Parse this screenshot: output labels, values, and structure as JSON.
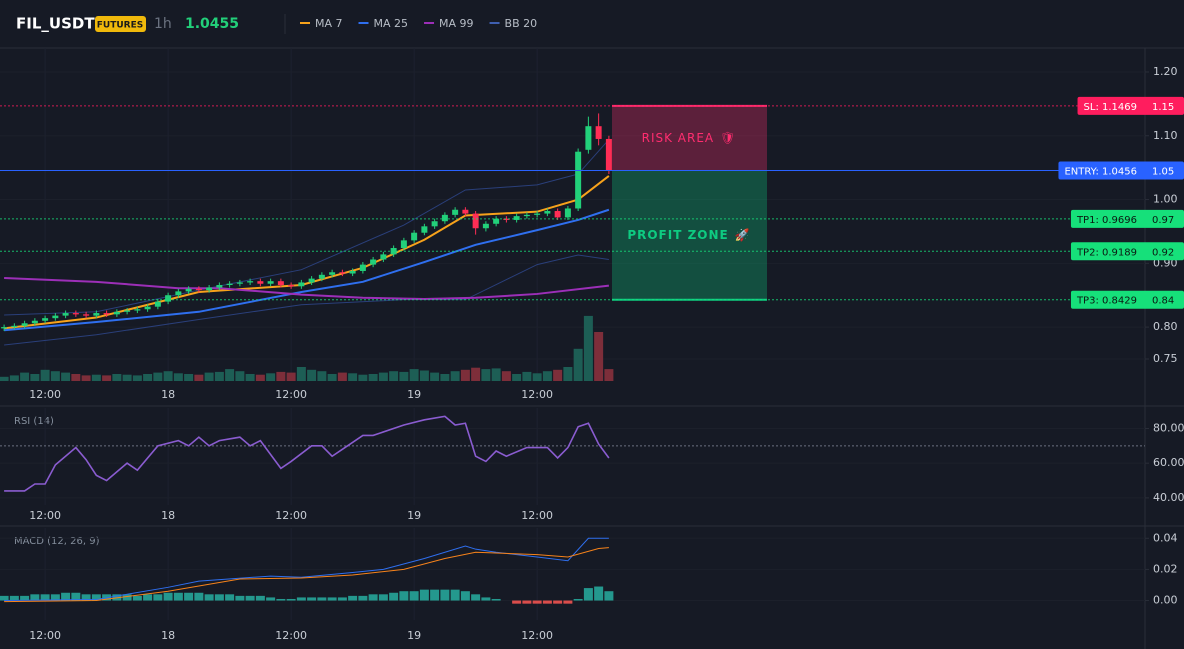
{
  "chart_data": [
    {
      "type": "candlestick",
      "title": "FIL_USDT",
      "badge": "FUTURES",
      "interval": "1h",
      "last_price": 1.0455,
      "up_color": "#22d07a",
      "down_color": "#ff2d55",
      "volume_up_color": "#1d5e55",
      "volume_down_color": "#7d2e3a",
      "xlim": [
        -0.4,
        111.3
      ],
      "ylim": [
        0.7155,
        1.2376
      ],
      "grid": true,
      "xticks": [
        {
          "value": 4,
          "label": "12:00"
        },
        {
          "value": 16,
          "label": "18"
        },
        {
          "value": 28,
          "label": "12:00"
        },
        {
          "value": 40,
          "label": "19"
        },
        {
          "value": 52,
          "label": "12:00"
        }
      ],
      "yticks": [
        {
          "value": 1.2,
          "label": "1.20"
        },
        {
          "value": 1.1,
          "label": "1.10"
        },
        {
          "value": 1,
          "label": "1.00"
        },
        {
          "value": 0.9,
          "label": "0.90"
        },
        {
          "value": 0.8,
          "label": "0.80"
        },
        0.75
      ],
      "open": [
        0.798,
        0.8,
        0.802,
        0.806,
        0.81,
        0.814,
        0.818,
        0.822,
        0.82,
        0.818,
        0.822,
        0.82,
        0.824,
        0.826,
        0.828,
        0.832,
        0.84,
        0.85,
        0.856,
        0.86,
        0.858,
        0.862,
        0.866,
        0.868,
        0.87,
        0.872,
        0.868,
        0.872,
        0.866,
        0.864,
        0.87,
        0.876,
        0.882,
        0.886,
        0.884,
        0.888,
        0.898,
        0.906,
        0.914,
        0.924,
        0.936,
        0.948,
        0.958,
        0.966,
        0.976,
        0.984,
        0.978,
        0.955,
        0.962,
        0.97,
        0.968,
        0.974,
        0.976,
        0.978,
        0.982,
        0.972,
        0.986,
        1.078,
        1.115,
        1.095
      ],
      "high": [
        0.804,
        0.806,
        0.81,
        0.814,
        0.818,
        0.822,
        0.826,
        0.826,
        0.824,
        0.826,
        0.826,
        0.828,
        0.83,
        0.832,
        0.836,
        0.844,
        0.854,
        0.86,
        0.864,
        0.864,
        0.866,
        0.87,
        0.872,
        0.874,
        0.876,
        0.876,
        0.876,
        0.876,
        0.87,
        0.874,
        0.88,
        0.886,
        0.89,
        0.89,
        0.892,
        0.902,
        0.91,
        0.918,
        0.928,
        0.94,
        0.952,
        0.962,
        0.97,
        0.98,
        0.988,
        0.988,
        0.982,
        0.966,
        0.974,
        0.974,
        0.978,
        0.98,
        0.982,
        0.986,
        0.986,
        0.99,
        1.08,
        1.13,
        1.135,
        1.1
      ],
      "low": [
        0.794,
        0.796,
        0.798,
        0.802,
        0.806,
        0.81,
        0.814,
        0.816,
        0.814,
        0.814,
        0.816,
        0.816,
        0.82,
        0.822,
        0.824,
        0.828,
        0.836,
        0.846,
        0.852,
        0.854,
        0.854,
        0.858,
        0.862,
        0.864,
        0.866,
        0.864,
        0.864,
        0.862,
        0.86,
        0.86,
        0.866,
        0.872,
        0.878,
        0.88,
        0.88,
        0.884,
        0.894,
        0.902,
        0.91,
        0.92,
        0.932,
        0.944,
        0.954,
        0.962,
        0.972,
        0.974,
        0.945,
        0.95,
        0.958,
        0.964,
        0.964,
        0.97,
        0.972,
        0.974,
        0.968,
        0.968,
        0.982,
        1.072,
        1.085,
        1.04
      ],
      "close": [
        0.8,
        0.802,
        0.806,
        0.81,
        0.814,
        0.818,
        0.822,
        0.82,
        0.818,
        0.822,
        0.82,
        0.824,
        0.826,
        0.828,
        0.832,
        0.84,
        0.85,
        0.856,
        0.86,
        0.858,
        0.862,
        0.866,
        0.868,
        0.87,
        0.872,
        0.868,
        0.872,
        0.866,
        0.864,
        0.87,
        0.876,
        0.882,
        0.886,
        0.884,
        0.888,
        0.898,
        0.906,
        0.914,
        0.924,
        0.936,
        0.948,
        0.958,
        0.966,
        0.976,
        0.984,
        0.978,
        0.955,
        0.962,
        0.97,
        0.968,
        0.974,
        0.976,
        0.978,
        0.982,
        0.972,
        0.986,
        1.075,
        1.115,
        1.095,
        1.0455
      ],
      "volume_lim": [
        0,
        100
      ],
      "volume": [
        6,
        8,
        12,
        10,
        16,
        14,
        12,
        10,
        8,
        9,
        8,
        10,
        9,
        8,
        10,
        12,
        14,
        11,
        10,
        9,
        12,
        13,
        17,
        14,
        10,
        9,
        11,
        13,
        12,
        20,
        16,
        14,
        10,
        12,
        11,
        9,
        10,
        12,
        14,
        13,
        17,
        15,
        12,
        10,
        14,
        16,
        19,
        17,
        18,
        14,
        10,
        13,
        11,
        14,
        16,
        20,
        46,
        93,
        70,
        17
      ],
      "lines": [
        {
          "name": "MA 7",
          "color": "#f7a21b",
          "x": [
            0,
            9,
            19,
            29,
            35,
            41,
            45,
            52,
            56,
            59
          ],
          "values": [
            0.798,
            0.815,
            0.855,
            0.866,
            0.893,
            0.937,
            0.975,
            0.981,
            1.0,
            1.037
          ]
        },
        {
          "name": "MA 25",
          "color": "#2f6fef",
          "x": [
            0,
            9,
            19,
            29,
            35,
            41,
            46,
            52,
            56,
            59
          ],
          "values": [
            0.795,
            0.808,
            0.824,
            0.855,
            0.871,
            0.902,
            0.929,
            0.952,
            0.968,
            0.984
          ]
        },
        {
          "name": "MA 99",
          "color": "#9c2fb8",
          "x": [
            0,
            9,
            17,
            21,
            29,
            35,
            41,
            46,
            52,
            59
          ],
          "values": [
            0.877,
            0.871,
            0.861,
            0.861,
            0.851,
            0.846,
            0.844,
            0.846,
            0.852,
            0.865
          ]
        }
      ],
      "band": {
        "name": "BB 20",
        "color": "#2a3f7a",
        "x": [
          0,
          9,
          19,
          29,
          39,
          45,
          52,
          56,
          59
        ],
        "upper": [
          0.819,
          0.824,
          0.858,
          0.89,
          0.96,
          1.015,
          1.023,
          1.04,
          1.094
        ],
        "lower": [
          0.772,
          0.788,
          0.812,
          0.835,
          0.843,
          0.843,
          0.898,
          0.913,
          0.906
        ]
      },
      "levels": [
        {
          "label": "SL: 1.1469",
          "value": 1.1469,
          "axis_label": "1.15",
          "color": "#ff1d5e",
          "label_text_color": "#ffffff",
          "dashed": true
        },
        {
          "label": "ENTRY: 1.0456",
          "value": 1.0456,
          "axis_label": "1.05",
          "color": "#2962ff",
          "label_text_color": "#ffffff",
          "dashed": false
        },
        {
          "label": "TP1: 0.9696",
          "value": 0.9696,
          "axis_label": "0.97",
          "color": "#16e07a",
          "label_text_color": "#0b1a12",
          "dashed": true
        },
        {
          "label": "TP2: 0.9189",
          "value": 0.9189,
          "axis_label": "0.92",
          "color": "#16e07a",
          "label_text_color": "#0b1a12",
          "dashed": true
        },
        {
          "label": "TP3: 0.8429",
          "value": 0.8429,
          "axis_label": "0.84",
          "color": "#16e07a",
          "label_text_color": "#0b1a12",
          "dashed": true
        }
      ],
      "zones": [
        {
          "label": "RISK AREA",
          "icon": "🛡",
          "from": 1.0456,
          "to": 1.1469,
          "color": "#ff2d6f"
        },
        {
          "label": "PROFIT ZONE",
          "icon": "🚀",
          "from": 1.0456,
          "to": 0.8429,
          "color": "#0ecb81"
        }
      ]
    },
    {
      "type": "line",
      "title": "RSI (14)",
      "xlim": [
        -0.4,
        111.3
      ],
      "ylim": [
        35.9,
        91.8
      ],
      "grid": true,
      "guide": 70,
      "xticks": [
        {
          "value": 4,
          "label": "12:00"
        },
        {
          "value": 16,
          "label": "18"
        },
        {
          "value": 28,
          "label": "12:00"
        },
        {
          "value": 40,
          "label": "19"
        },
        {
          "value": 52,
          "label": "12:00"
        }
      ],
      "yticks": [
        {
          "value": 80,
          "label": "80.00"
        },
        {
          "value": 60,
          "label": "60.00"
        },
        {
          "value": 40,
          "label": "40.00"
        }
      ],
      "series": [
        {
          "name": "RSI",
          "color": "#8a5cd0",
          "x": [
            0,
            2,
            3,
            4,
            5,
            7,
            8,
            9,
            10,
            12,
            13,
            15,
            17,
            18,
            19,
            20,
            21,
            23,
            24,
            25,
            27,
            28,
            30,
            31,
            32,
            33,
            35,
            36,
            39,
            41,
            43,
            44,
            45,
            46,
            47,
            48,
            49,
            51,
            53,
            54,
            55,
            56,
            57,
            58,
            59
          ],
          "values": [
            44,
            44,
            48,
            48,
            59,
            69,
            62,
            53,
            50,
            60,
            56,
            70,
            73,
            70,
            75,
            70,
            73,
            75,
            70,
            73,
            57,
            61,
            70,
            70,
            64,
            68,
            76,
            76,
            82,
            85,
            87,
            82,
            83,
            64,
            61,
            67,
            64,
            69,
            69,
            63,
            69,
            81,
            83,
            71,
            63
          ]
        }
      ]
    },
    {
      "type": "macd",
      "title": "MACD (12, 26, 9)",
      "xlim": [
        -0.4,
        111.3
      ],
      "ylim": [
        -0.0125,
        0.0466
      ],
      "grid": true,
      "xticks": [
        {
          "value": 4,
          "label": "12:00"
        },
        {
          "value": 16,
          "label": "18"
        },
        {
          "value": 28,
          "label": "12:00"
        },
        {
          "value": 40,
          "label": "19"
        },
        {
          "value": 52,
          "label": "12:00"
        }
      ],
      "yticks": [
        0.04,
        0.02,
        {
          "value": 0,
          "label": "0.00"
        }
      ],
      "histogram": {
        "up_color": "#26a69a",
        "down_color": "#ef5350",
        "values": [
          0.003,
          0.003,
          0.003,
          0.004,
          0.004,
          0.004,
          0.005,
          0.005,
          0.004,
          0.004,
          0.004,
          0.004,
          0.004,
          0.003,
          0.004,
          0.004,
          0.005,
          0.005,
          0.005,
          0.005,
          0.004,
          0.004,
          0.004,
          0.003,
          0.003,
          0.003,
          0.002,
          0.001,
          0.001,
          0.002,
          0.002,
          0.002,
          0.002,
          0.002,
          0.003,
          0.003,
          0.004,
          0.004,
          0.005,
          0.006,
          0.006,
          0.007,
          0.007,
          0.007,
          0.007,
          0.006,
          0.004,
          0.002,
          0.001,
          0,
          -0.002,
          -0.002,
          -0.002,
          -0.002,
          -0.002,
          -0.002,
          0.001,
          0.008,
          0.009,
          0.006
        ]
      },
      "series": [
        {
          "name": "MACD",
          "color": "#2f6fef",
          "x": [
            0,
            9,
            16,
            19,
            26,
            29,
            34,
            37,
            41,
            45,
            46,
            48,
            52,
            55,
            57,
            59
          ],
          "values": [
            0,
            0.0007,
            0.0085,
            0.0125,
            0.0157,
            0.015,
            0.018,
            0.02,
            0.027,
            0.035,
            0.033,
            0.031,
            0.028,
            0.0256,
            0.04,
            0.04
          ]
        },
        {
          "name": "Signal",
          "color": "#f7831b",
          "x": [
            0,
            9,
            16,
            23,
            29,
            34,
            39,
            43,
            46,
            52,
            55,
            58,
            59
          ],
          "values": [
            -0.0007,
            0,
            0.006,
            0.0138,
            0.0145,
            0.0164,
            0.02,
            0.027,
            0.031,
            0.0295,
            0.028,
            0.0334,
            0.034
          ]
        }
      ]
    }
  ]
}
